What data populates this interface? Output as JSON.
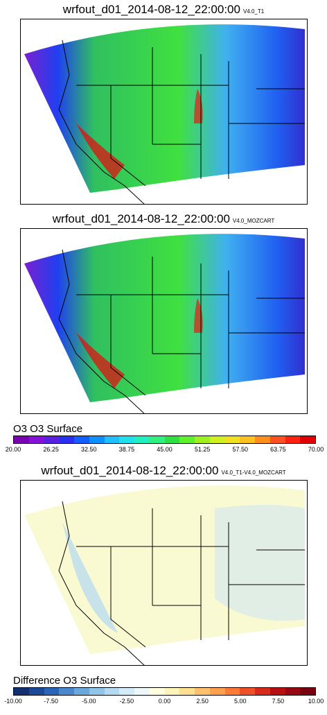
{
  "panels": [
    {
      "title": "wrfout_d01_2014-08-12_22:00:00",
      "subtitle": "V4.0_T1"
    },
    {
      "title": "wrfout_d01_2014-08-12_22:00:00",
      "subtitle": "V4.0_MOZCART"
    },
    {
      "title": "wrfout_d01_2014-08-12_22:00:00",
      "subtitle": "V4.0_T1-V4.0_MOZCART"
    }
  ],
  "colorbars": [
    {
      "label": "O3 O3   Surface",
      "ticks": [
        "20.00",
        "26.25",
        "32.50",
        "38.75",
        "45.00",
        "51.25",
        "57.50",
        "63.75",
        "70.00"
      ],
      "colors": [
        "#7a00b0",
        "#8a10d8",
        "#5a20e0",
        "#2a30f0",
        "#1060ff",
        "#1090ff",
        "#20c0ff",
        "#20e0f0",
        "#20f0c0",
        "#30f080",
        "#30e040",
        "#60f030",
        "#a0f020",
        "#d0f020",
        "#f0e020",
        "#ffc020",
        "#ff9020",
        "#ff5020",
        "#ff2010",
        "#e00000"
      ]
    },
    {
      "label": "Difference O3   Surface",
      "ticks": [
        "-10.00",
        "-7.50",
        "-5.00",
        "-2.50",
        "0.00",
        "2.50",
        "5.00",
        "7.50",
        "10.00"
      ],
      "colors": [
        "#103070",
        "#1a4a98",
        "#2a66b8",
        "#4a88cc",
        "#6aa8dc",
        "#90c4e8",
        "#b4daf0",
        "#d4ecf6",
        "#eef8f8",
        "#ffffe0",
        "#fff4b8",
        "#ffe090",
        "#ffc070",
        "#ffa050",
        "#ff7a38",
        "#f05028",
        "#d82a1a",
        "#b81010",
        "#980810",
        "#780010"
      ]
    }
  ]
}
